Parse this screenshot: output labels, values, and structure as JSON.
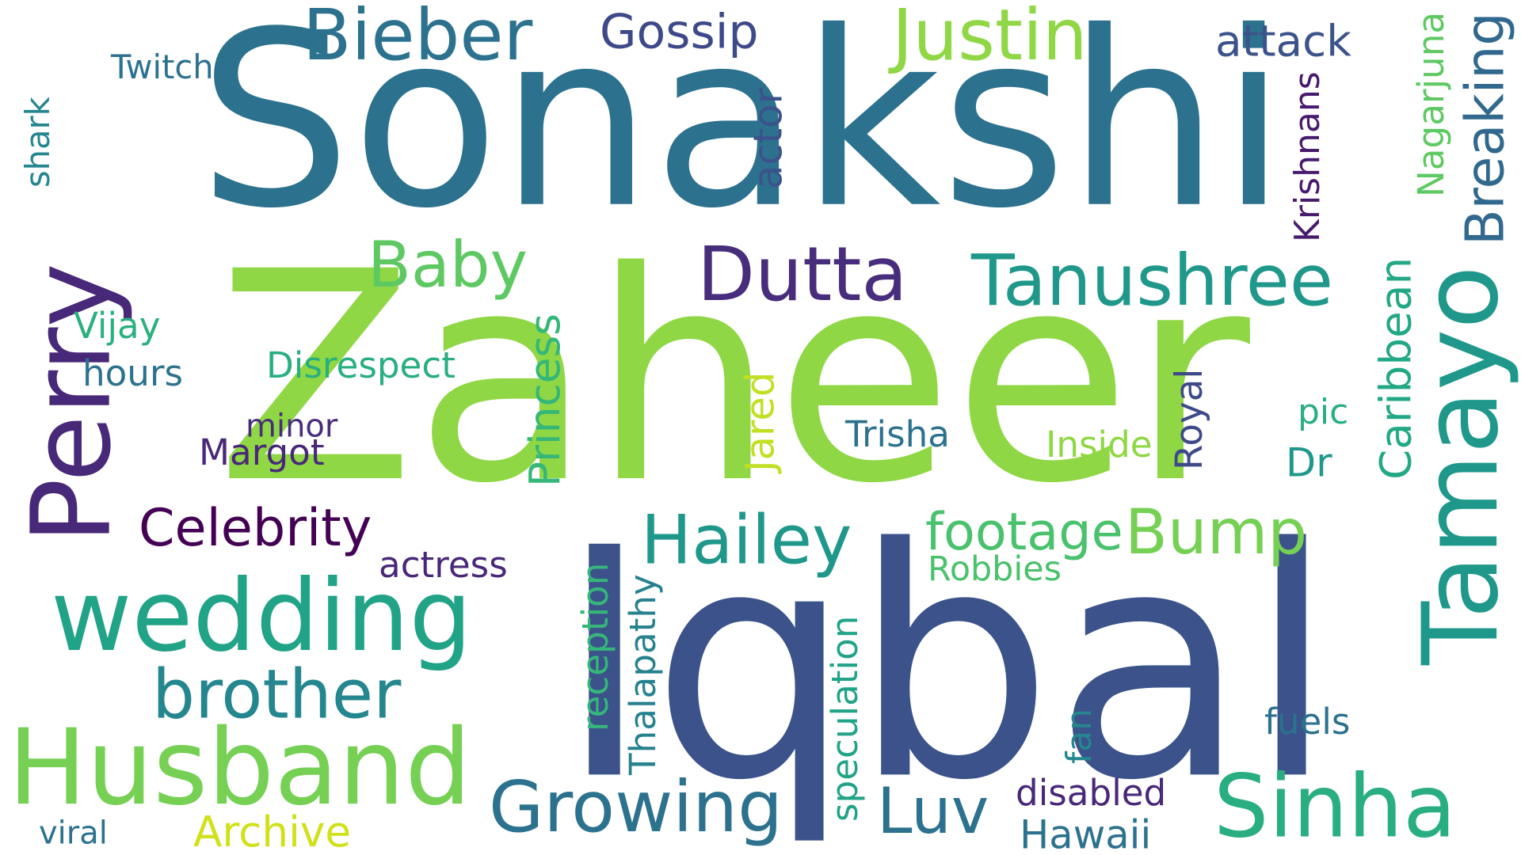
{
  "words": [
    {
      "text": "Sonakshi",
      "color": "#2c728e",
      "vertical": false
    },
    {
      "text": "Zaheer",
      "color": "#8fd744",
      "vertical": false
    },
    {
      "text": "Iqbal",
      "color": "#3b528b",
      "vertical": false
    },
    {
      "text": "Perry",
      "color": "#482878",
      "vertical": true
    },
    {
      "text": "wedding",
      "color": "#20a386",
      "vertical": false
    },
    {
      "text": "Husband",
      "color": "#75d054",
      "vertical": false
    },
    {
      "text": "Sinha",
      "color": "#28ae80",
      "vertical": false
    },
    {
      "text": "Tamayo",
      "color": "#1f988b",
      "vertical": true
    },
    {
      "text": "brother",
      "color": "#24868e",
      "vertical": false
    },
    {
      "text": "Growing",
      "color": "#2c728e",
      "vertical": false
    },
    {
      "text": "Tanushree",
      "color": "#1f988b",
      "vertical": false
    },
    {
      "text": "Dutta",
      "color": "#472d7b",
      "vertical": false
    },
    {
      "text": "Justin",
      "color": "#8fd744",
      "vertical": false
    },
    {
      "text": "Bieber",
      "color": "#2c728e",
      "vertical": false
    },
    {
      "text": "Baby",
      "color": "#5ec962",
      "vertical": false
    },
    {
      "text": "Hailey",
      "color": "#1f988b",
      "vertical": false
    },
    {
      "text": "Bump",
      "color": "#75d054",
      "vertical": false
    },
    {
      "text": "Luv",
      "color": "#2c728e",
      "vertical": false
    },
    {
      "text": "Hawaii",
      "color": "#2c728e",
      "vertical": false
    },
    {
      "text": "footage",
      "color": "#4ac16d",
      "vertical": false
    },
    {
      "text": "Celebrity",
      "color": "#440154",
      "vertical": false
    },
    {
      "text": "Archive",
      "color": "#d0e11c",
      "vertical": false
    },
    {
      "text": "Gossip",
      "color": "#3e4989",
      "vertical": false
    },
    {
      "text": "attack",
      "color": "#3b528b",
      "vertical": false
    },
    {
      "text": "Breaking",
      "color": "#31688e",
      "vertical": true
    },
    {
      "text": "Nagarjuna",
      "color": "#5ec962",
      "vertical": true
    },
    {
      "text": "Krishnans",
      "color": "#481a6c",
      "vertical": true
    },
    {
      "text": "actor",
      "color": "#3b528b",
      "vertical": true
    },
    {
      "text": "Twitch",
      "color": "#2c728e",
      "vertical": false
    },
    {
      "text": "shark",
      "color": "#24868e",
      "vertical": true
    },
    {
      "text": "Vijay",
      "color": "#2ab07f",
      "vertical": false
    },
    {
      "text": "hours",
      "color": "#2c728e",
      "vertical": false
    },
    {
      "text": "Disrespect",
      "color": "#28ae80",
      "vertical": false
    },
    {
      "text": "minor",
      "color": "#472d7b",
      "vertical": false
    },
    {
      "text": "Margot",
      "color": "#482878",
      "vertical": false
    },
    {
      "text": "actress",
      "color": "#482878",
      "vertical": false
    },
    {
      "text": "Princess",
      "color": "#35b779",
      "vertical": true
    },
    {
      "text": "Jared",
      "color": "#c2df23",
      "vertical": true
    },
    {
      "text": "Trisha",
      "color": "#2c728e",
      "vertical": false
    },
    {
      "text": "Inside",
      "color": "#8fd744",
      "vertical": false
    },
    {
      "text": "Royal",
      "color": "#3e4989",
      "vertical": true
    },
    {
      "text": "Caribbean",
      "color": "#22a884",
      "vertical": true
    },
    {
      "text": "Dr",
      "color": "#1f988b",
      "vertical": false
    },
    {
      "text": "pic",
      "color": "#28ae80",
      "vertical": false
    },
    {
      "text": "Robbies",
      "color": "#4ac16d",
      "vertical": false
    },
    {
      "text": "reception",
      "color": "#35b779",
      "vertical": true
    },
    {
      "text": "Thalapathy",
      "color": "#26828e",
      "vertical": true
    },
    {
      "text": "speculation",
      "color": "#20a386",
      "vertical": true
    },
    {
      "text": "fan",
      "color": "#24868e",
      "vertical": true
    },
    {
      "text": "fuels",
      "color": "#2c728e",
      "vertical": false
    },
    {
      "text": "disabled",
      "color": "#482878",
      "vertical": false
    },
    {
      "text": "viral",
      "color": "#2c728e",
      "vertical": false
    }
  ]
}
